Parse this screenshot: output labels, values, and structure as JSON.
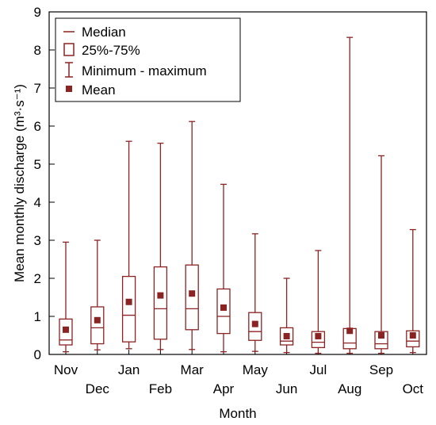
{
  "chart_data": {
    "type": "box",
    "xlabel": "Month",
    "ylabel": "Mean monthly discharge",
    "ylabel_unit": "(m³·s⁻¹)",
    "ylim": [
      0,
      9
    ],
    "yticks": [
      0,
      1,
      2,
      3,
      4,
      5,
      6,
      7,
      8,
      9
    ],
    "grid": false,
    "legend_placement": "top-left",
    "color": "#8b2323",
    "legend": [
      {
        "key": "median",
        "label": "Median"
      },
      {
        "key": "box",
        "label": "25%-75%"
      },
      {
        "key": "whisker",
        "label": "Minimum - maximum"
      },
      {
        "key": "mean",
        "label": "Mean"
      }
    ],
    "categories": [
      "Nov",
      "Dec",
      "Jan",
      "Feb",
      "Mar",
      "Apr",
      "May",
      "Jun",
      "Jul",
      "Aug",
      "Sep",
      "Oct"
    ],
    "stats": [
      {
        "min": 0.07,
        "q1": 0.25,
        "median": 0.38,
        "q3": 0.93,
        "max": 2.95,
        "mean": 0.65
      },
      {
        "min": 0.12,
        "q1": 0.28,
        "median": 0.7,
        "q3": 1.25,
        "max": 3.0,
        "mean": 0.9
      },
      {
        "min": 0.15,
        "q1": 0.33,
        "median": 1.03,
        "q3": 2.05,
        "max": 5.6,
        "mean": 1.38
      },
      {
        "min": 0.13,
        "q1": 0.4,
        "median": 1.2,
        "q3": 2.3,
        "max": 5.55,
        "mean": 1.55
      },
      {
        "min": 0.13,
        "q1": 0.65,
        "median": 1.2,
        "q3": 2.35,
        "max": 6.12,
        "mean": 1.6
      },
      {
        "min": 0.07,
        "q1": 0.55,
        "median": 1.0,
        "q3": 1.72,
        "max": 4.47,
        "mean": 1.23
      },
      {
        "min": 0.08,
        "q1": 0.37,
        "median": 0.6,
        "q3": 1.1,
        "max": 3.17,
        "mean": 0.8
      },
      {
        "min": 0.05,
        "q1": 0.25,
        "median": 0.35,
        "q3": 0.7,
        "max": 2.0,
        "mean": 0.48
      },
      {
        "min": 0.03,
        "q1": 0.18,
        "median": 0.32,
        "q3": 0.6,
        "max": 2.73,
        "mean": 0.48
      },
      {
        "min": 0.03,
        "q1": 0.15,
        "median": 0.3,
        "q3": 0.68,
        "max": 8.33,
        "mean": 0.62
      },
      {
        "min": 0.03,
        "q1": 0.15,
        "median": 0.28,
        "q3": 0.6,
        "max": 5.22,
        "mean": 0.5
      },
      {
        "min": 0.05,
        "q1": 0.2,
        "median": 0.35,
        "q3": 0.62,
        "max": 3.28,
        "mean": 0.5
      }
    ]
  }
}
